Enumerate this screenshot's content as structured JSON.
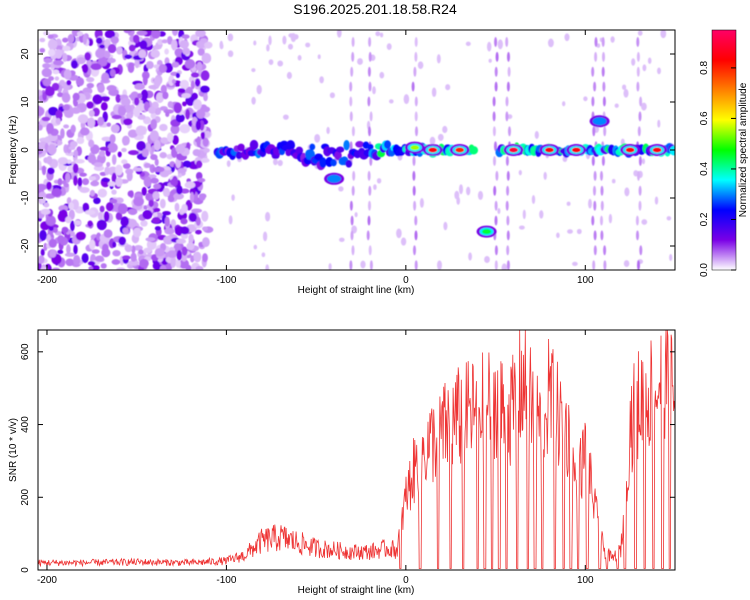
{
  "title": "S196.2025.201.18.58.R24",
  "chart_data": [
    {
      "type": "heatmap",
      "xlabel": "Height of straight line (km)",
      "ylabel": "Frequency (Hz)",
      "xlim": [
        -205,
        150
      ],
      "ylim": [
        -25,
        25
      ],
      "x_ticks": [
        -200,
        -100,
        0,
        100
      ],
      "y_ticks": [
        -20,
        -10,
        0,
        10,
        20
      ],
      "colorbar": {
        "label": "Normalized spectral amplitude",
        "range": [
          0,
          0.95
        ],
        "ticks": [
          0.0,
          0.2,
          0.4,
          0.6,
          0.8
        ],
        "colors": [
          "#ffffff",
          "#7a00e6",
          "#0000ff",
          "#00ffff",
          "#00ff00",
          "#ffff00",
          "#ff8000",
          "#ff0000",
          "#ff0066"
        ]
      },
      "ridge": {
        "x_start": -105,
        "x_end": 150,
        "frequency": 0,
        "hot_spots": [
          {
            "x": -40,
            "y": -6,
            "v": 0.3
          },
          {
            "x": 5,
            "y": 0.5,
            "v": 0.55
          },
          {
            "x": 15,
            "y": 0,
            "v": 0.85
          },
          {
            "x": 30,
            "y": 0,
            "v": 0.8
          },
          {
            "x": 45,
            "y": -17,
            "v": 0.45
          },
          {
            "x": 60,
            "y": 0,
            "v": 0.9
          },
          {
            "x": 80,
            "y": 0,
            "v": 0.85
          },
          {
            "x": 95,
            "y": 0,
            "v": 0.85
          },
          {
            "x": 108,
            "y": 6,
            "v": 0.3
          },
          {
            "x": 125,
            "y": 0,
            "v": 0.85
          },
          {
            "x": 140,
            "y": 0,
            "v": 0.85
          }
        ]
      }
    },
    {
      "type": "line",
      "xlabel": "Height of straight line (km)",
      "ylabel": "SNR (10 * v/v)",
      "xlim": [
        -205,
        150
      ],
      "ylim": [
        0,
        660
      ],
      "x_ticks": [
        -200,
        -100,
        0,
        100
      ],
      "y_ticks": [
        0,
        200,
        400,
        600
      ],
      "color": "#ee3333",
      "series": [
        {
          "x": [
            -205,
            -180,
            -150,
            -120,
            -100,
            -90,
            -80,
            -70,
            -60,
            -50,
            -40,
            -30,
            -20,
            -10,
            -5,
            0,
            5,
            10,
            20,
            30,
            40,
            50,
            55,
            60,
            65,
            70,
            75,
            80,
            85,
            90,
            95,
            100,
            105,
            110,
            115,
            120,
            125,
            130,
            135,
            140,
            145,
            150
          ],
          "values": [
            20,
            20,
            22,
            20,
            25,
            40,
            80,
            90,
            75,
            60,
            55,
            50,
            50,
            60,
            55,
            200,
            280,
            330,
            380,
            420,
            440,
            470,
            430,
            440,
            520,
            450,
            400,
            480,
            420,
            380,
            230,
            330,
            180,
            60,
            30,
            60,
            400,
            460,
            480,
            500,
            560,
            450
          ]
        }
      ],
      "dropouts": [
        -3,
        8,
        18,
        25,
        32,
        40,
        44,
        48,
        52,
        56,
        62,
        68,
        72,
        76,
        83,
        88,
        92,
        96,
        101,
        108,
        112,
        118,
        122,
        128,
        133,
        138,
        143,
        147
      ]
    }
  ]
}
